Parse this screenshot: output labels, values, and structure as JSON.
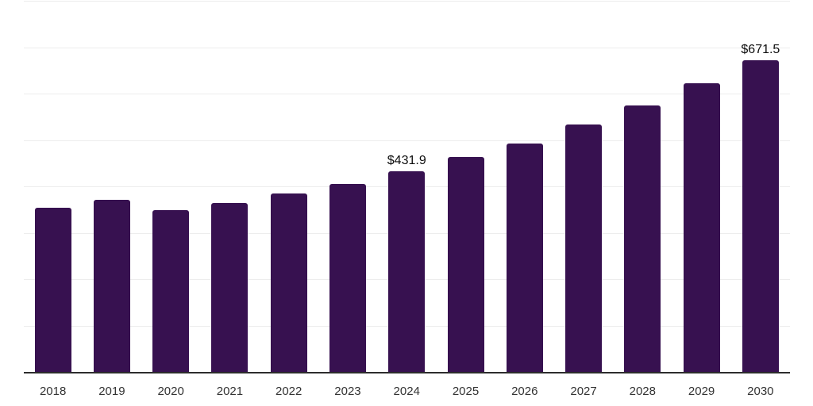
{
  "chart_data": {
    "type": "bar",
    "title": "",
    "xlabel": "",
    "ylabel": "",
    "unit_prefix": "$",
    "categories": [
      "2018",
      "2019",
      "2020",
      "2021",
      "2022",
      "2023",
      "2024",
      "2025",
      "2026",
      "2027",
      "2028",
      "2029",
      "2030"
    ],
    "values": [
      353.7,
      371.8,
      349.1,
      364.4,
      384.4,
      405.9,
      431.9,
      462.9,
      492.6,
      534.0,
      574.1,
      622.5,
      671.5
    ],
    "annotations": [
      {
        "category": "2024",
        "text": "$431.9"
      },
      {
        "category": "2030",
        "text": "$671.5"
      }
    ],
    "ylim": [
      0,
      800
    ],
    "grid_step": 100,
    "grid": true,
    "legend": false,
    "y_axis_labels_visible": false,
    "colors": {
      "bar": "#371150",
      "gridline": "#ededed",
      "axis_line": "#2d2d2d",
      "tick_label": "#333333",
      "data_label": "#0d0d0d",
      "background": "#ffffff"
    }
  }
}
